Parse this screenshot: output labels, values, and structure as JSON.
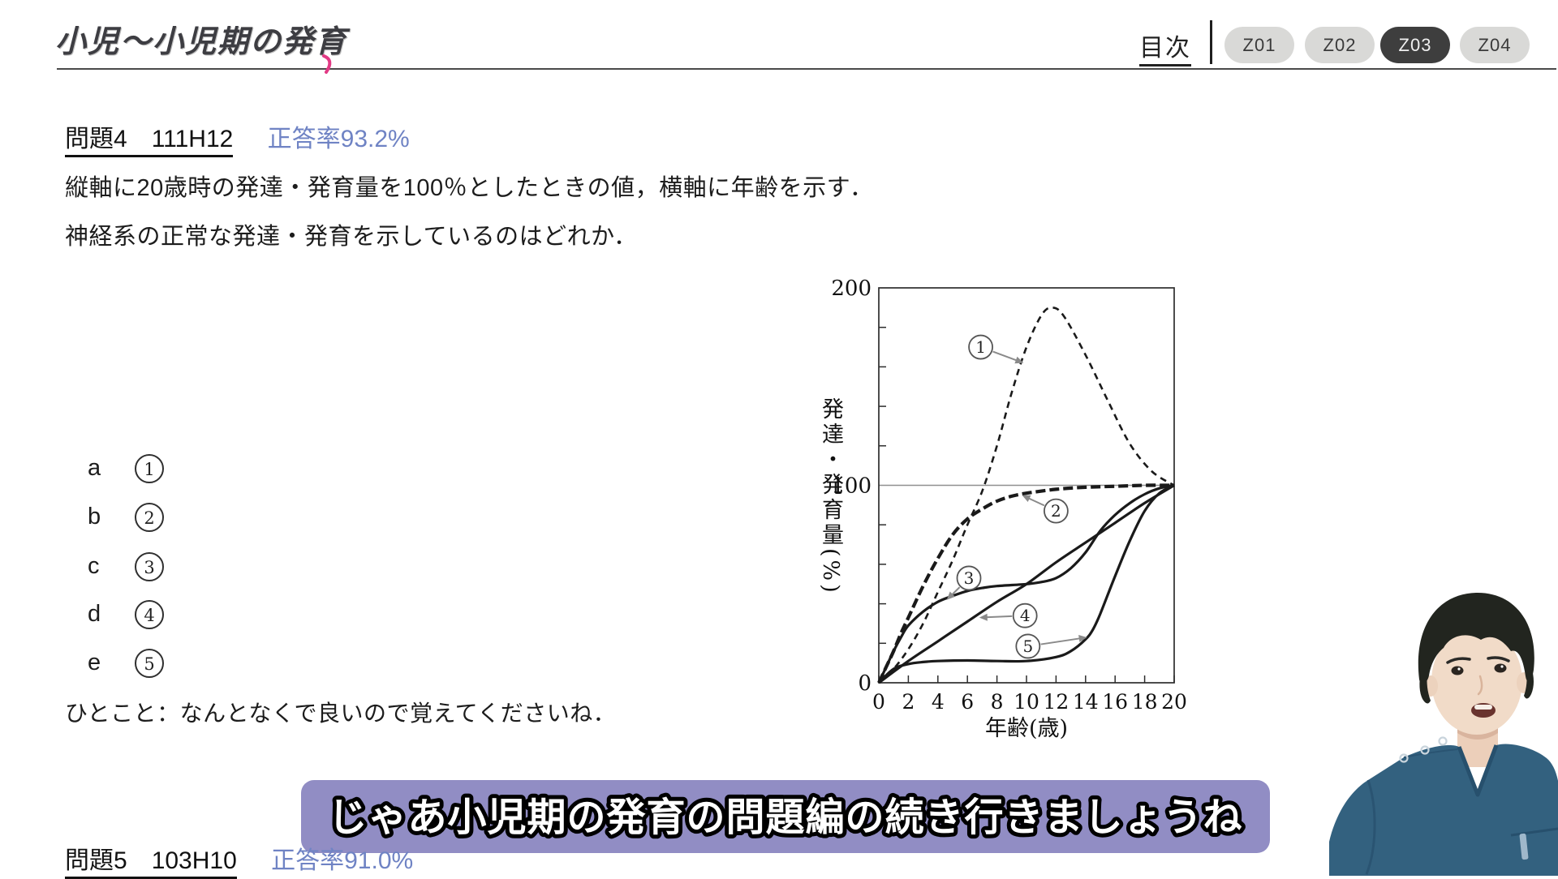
{
  "header": {
    "title": "小児〜小児期の発育",
    "toc": "目次",
    "tabs": [
      {
        "label": "Z01",
        "active": false
      },
      {
        "label": "Z02",
        "active": false
      },
      {
        "label": "Z03",
        "active": true
      },
      {
        "label": "Z04",
        "active": false
      }
    ]
  },
  "question": {
    "label": "問題4",
    "code": "111H12",
    "rate": "正答率93.2%",
    "line1": "縦軸に20歳時の発達・発育量を100％としたときの値，横軸に年齢を示す．",
    "line2": "神経系の正常な発達・発育を示しているのはどれか．",
    "options": [
      {
        "letter": "a",
        "num": "1"
      },
      {
        "letter": "b",
        "num": "2"
      },
      {
        "letter": "c",
        "num": "3"
      },
      {
        "letter": "d",
        "num": "4"
      },
      {
        "letter": "e",
        "num": "5"
      }
    ],
    "note": "ひとこと：なんとなくで良いので覚えてくださいね．"
  },
  "next_question": {
    "label": "問題5",
    "code": "103H10",
    "rate": "正答率91.0%"
  },
  "subtitle": {
    "text": "じゃあ小児期の発育の問題編の続き行きましょうね"
  },
  "colors": {
    "rate_blue": "#6f83c4",
    "pill_bg": "#d9d9d7",
    "pill_active_bg": "#3e3e3e",
    "subtitle_bg": "#918dc4",
    "accent_pink": "#e23a85",
    "scrub_blue": "#33617f"
  },
  "chart_data": {
    "type": "line",
    "xlabel": "年齢(歳)",
    "ylabel": "発達・発育量(%)",
    "x_range": [
      0,
      20
    ],
    "y_range": [
      0,
      200
    ],
    "x_ticks": [
      0,
      2,
      4,
      6,
      8,
      10,
      12,
      14,
      16,
      18,
      20
    ],
    "y_ticks_labeled": [
      0,
      100,
      200
    ],
    "y_minor_ticks": [
      20,
      40,
      60,
      80,
      120,
      140,
      160,
      180
    ],
    "gridline_at": 100,
    "legend_position": "none",
    "series": [
      {
        "name": "1",
        "style": "dashed-thin",
        "points": [
          [
            0,
            0
          ],
          [
            1,
            7
          ],
          [
            2,
            17
          ],
          [
            3,
            30
          ],
          [
            4,
            46
          ],
          [
            5,
            62
          ],
          [
            6,
            80
          ],
          [
            7,
            97
          ],
          [
            8,
            120
          ],
          [
            9,
            147
          ],
          [
            10,
            170
          ],
          [
            11,
            186
          ],
          [
            11.7,
            190
          ],
          [
            12.5,
            186
          ],
          [
            14,
            166
          ],
          [
            15.5,
            143
          ],
          [
            17,
            121
          ],
          [
            18.5,
            107
          ],
          [
            20,
            100
          ]
        ]
      },
      {
        "name": "2",
        "style": "dashed-bold",
        "points": [
          [
            0,
            0
          ],
          [
            0.5,
            8
          ],
          [
            1,
            16
          ],
          [
            1.5,
            25
          ],
          [
            2,
            33
          ],
          [
            3,
            49
          ],
          [
            4,
            63
          ],
          [
            5,
            75
          ],
          [
            6,
            83
          ],
          [
            7,
            88
          ],
          [
            8,
            92
          ],
          [
            9,
            94.5
          ],
          [
            10,
            96
          ],
          [
            12,
            98
          ],
          [
            14,
            99
          ],
          [
            16,
            99.5
          ],
          [
            18,
            100
          ],
          [
            20,
            100
          ]
        ]
      },
      {
        "name": "3",
        "style": "solid",
        "points": [
          [
            0,
            0
          ],
          [
            0.5,
            8
          ],
          [
            1,
            16
          ],
          [
            1.5,
            23
          ],
          [
            2,
            29
          ],
          [
            3,
            36
          ],
          [
            4,
            41
          ],
          [
            5,
            44
          ],
          [
            6,
            46.5
          ],
          [
            7,
            48
          ],
          [
            8,
            49
          ],
          [
            10,
            50
          ],
          [
            11,
            51
          ],
          [
            12,
            53
          ],
          [
            13,
            58
          ],
          [
            14,
            66
          ],
          [
            15,
            77
          ],
          [
            16,
            85
          ],
          [
            17,
            91
          ],
          [
            18,
            95.5
          ],
          [
            19,
            98.5
          ],
          [
            20,
            100
          ]
        ]
      },
      {
        "name": "4",
        "style": "solid",
        "points": [
          [
            0,
            0
          ],
          [
            2,
            11
          ],
          [
            4,
            21
          ],
          [
            6,
            31
          ],
          [
            8,
            41
          ],
          [
            10,
            50
          ],
          [
            12,
            61
          ],
          [
            14,
            71
          ],
          [
            16,
            81
          ],
          [
            18,
            91
          ],
          [
            20,
            100
          ]
        ]
      },
      {
        "name": "5",
        "style": "solid",
        "points": [
          [
            0,
            0
          ],
          [
            1,
            7
          ],
          [
            2,
            9.5
          ],
          [
            3,
            10.5
          ],
          [
            4,
            11
          ],
          [
            6,
            11.3
          ],
          [
            8,
            11
          ],
          [
            10,
            11
          ],
          [
            12,
            13
          ],
          [
            13,
            16
          ],
          [
            14,
            22
          ],
          [
            14.5,
            27
          ],
          [
            15,
            35
          ],
          [
            16,
            54
          ],
          [
            17,
            72
          ],
          [
            18,
            87
          ],
          [
            19,
            96
          ],
          [
            20,
            100
          ]
        ]
      }
    ],
    "annotations": [
      {
        "label": "1",
        "cx": 6.9,
        "cy": 170,
        "tx": 9.8,
        "ty": 162
      },
      {
        "label": "2",
        "cx": 12.0,
        "cy": 87,
        "tx": 9.7,
        "ty": 95
      },
      {
        "label": "3",
        "cx": 6.1,
        "cy": 53,
        "tx": 4.6,
        "ty": 42
      },
      {
        "label": "4",
        "cx": 9.9,
        "cy": 34,
        "tx": 6.8,
        "ty": 33
      },
      {
        "label": "5",
        "cx": 10.1,
        "cy": 18.5,
        "tx": 14.1,
        "ty": 23
      }
    ]
  }
}
